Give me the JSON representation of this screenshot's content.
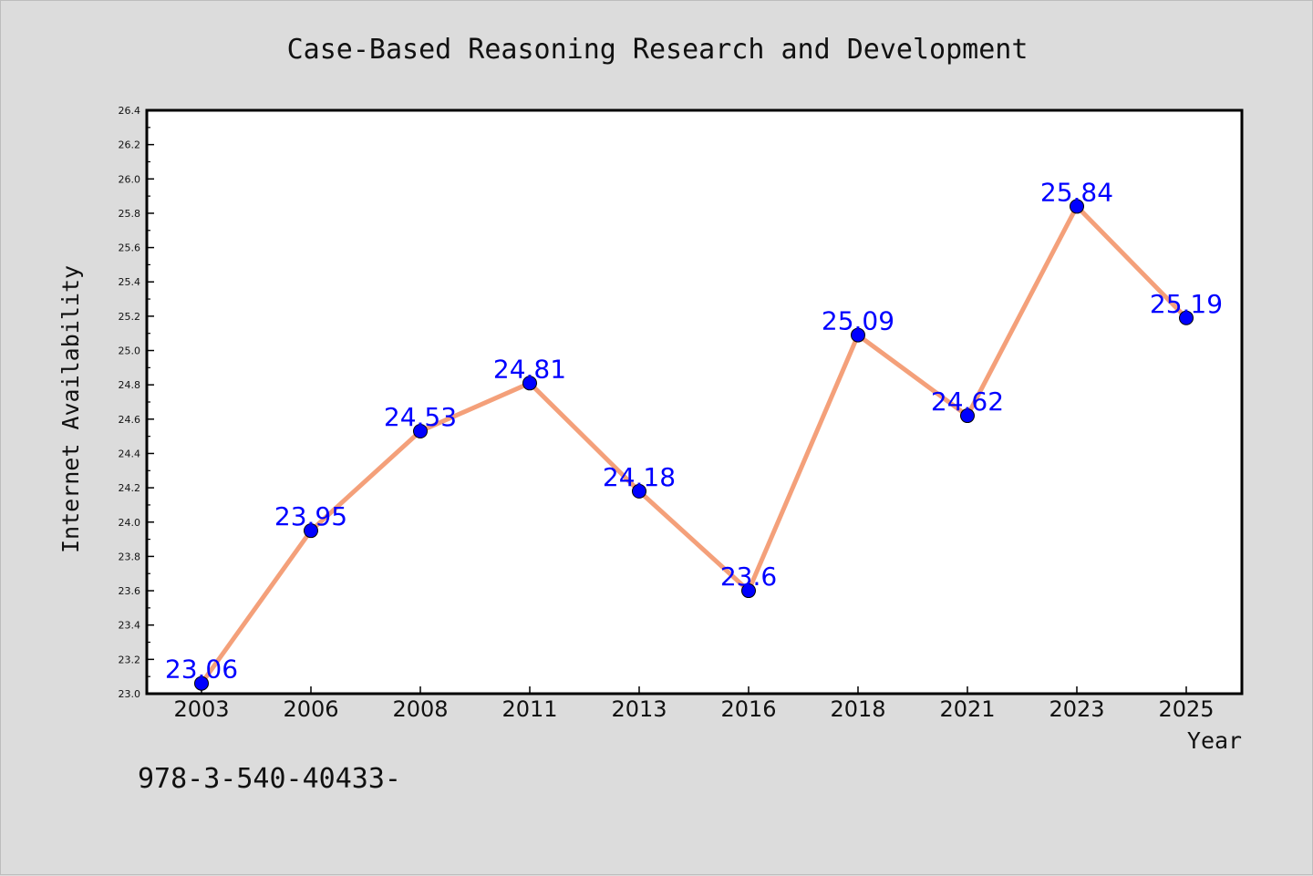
{
  "chart_data": {
    "type": "line",
    "title": "Case-Based Reasoning Research and Development",
    "xlabel": "Year",
    "ylabel": "Internet Availability",
    "categories": [
      "2003",
      "2006",
      "2008",
      "2011",
      "2013",
      "2016",
      "2018",
      "2021",
      "2023",
      "2025"
    ],
    "series": [
      {
        "values": [
          23.06,
          23.95,
          24.53,
          24.81,
          24.18,
          23.6,
          25.09,
          24.62,
          25.84,
          25.19
        ],
        "line_color": "#f4a07a",
        "marker_color": "#0000ff"
      }
    ],
    "data_labels": [
      "23.06",
      "23.95",
      "24.53",
      "24.81",
      "24.18",
      "23.6",
      "25.09",
      "24.62",
      "25.84",
      "25.19"
    ],
    "ylim": [
      23.0,
      26.4
    ],
    "y_major_ticks": [
      "23.0",
      "23.2",
      "23.4",
      "23.6",
      "23.8",
      "24.0",
      "24.2",
      "24.4",
      "24.6",
      "24.8",
      "25.0",
      "25.2",
      "25.4",
      "25.6",
      "25.8",
      "26.0",
      "26.2",
      "26.4"
    ],
    "grid": false,
    "legend": false
  },
  "footer": {
    "text": "978-3-540-40433-"
  }
}
